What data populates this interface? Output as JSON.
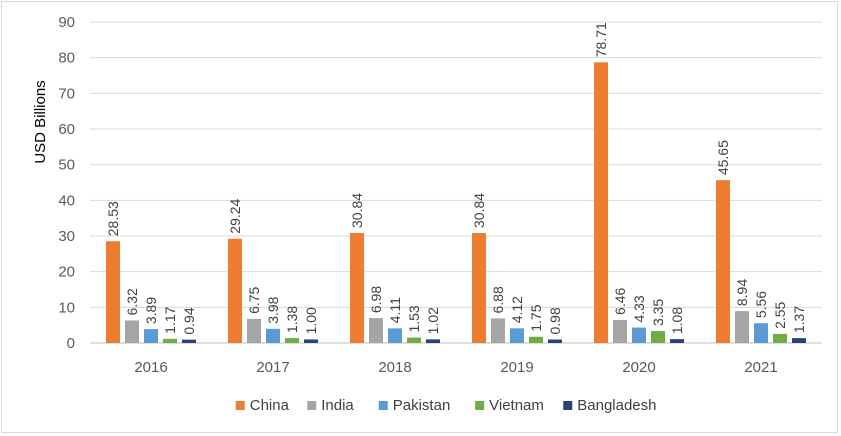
{
  "chart_data": {
    "type": "bar",
    "title": "",
    "xlabel": "",
    "ylabel": "USD Billions",
    "ylim": [
      0,
      90
    ],
    "yticks": [
      0,
      10,
      20,
      30,
      40,
      50,
      60,
      70,
      80,
      90
    ],
    "grid": true,
    "legend_position": "bottom",
    "categories": [
      "2016",
      "2017",
      "2018",
      "2019",
      "2020",
      "2021"
    ],
    "series": [
      {
        "name": "China",
        "color": "#ED7D31",
        "values": [
          28.53,
          29.24,
          30.84,
          30.84,
          78.71,
          45.65
        ],
        "labels": [
          "28.53",
          "29.24",
          "30.84",
          "30.84",
          "78.71",
          "45.65"
        ]
      },
      {
        "name": "India",
        "color": "#A5A5A5",
        "values": [
          6.32,
          6.75,
          6.98,
          6.88,
          6.46,
          8.94
        ],
        "labels": [
          "6.32",
          "6.75",
          "6.98",
          "6.88",
          "6.46",
          "8.94"
        ]
      },
      {
        "name": "Pakistan",
        "color": "#5B9BD5",
        "values": [
          3.89,
          3.98,
          4.11,
          4.12,
          4.33,
          5.56
        ],
        "labels": [
          "3.89",
          "3.98",
          "4.11",
          "4.12",
          "4.33",
          "5.56"
        ]
      },
      {
        "name": "Vietnam",
        "color": "#70AD47",
        "values": [
          1.17,
          1.38,
          1.53,
          1.75,
          3.35,
          2.55
        ],
        "labels": [
          "1.17",
          "1.38",
          "1.53",
          "1.75",
          "3.35",
          "2.55"
        ]
      },
      {
        "name": "Bangladesh",
        "color": "#264478",
        "values": [
          0.94,
          1.0,
          1.02,
          0.98,
          1.08,
          1.37
        ],
        "labels": [
          "0.94",
          "1.00",
          "1.02",
          "0.98",
          "1.08",
          "1.37"
        ]
      }
    ]
  }
}
